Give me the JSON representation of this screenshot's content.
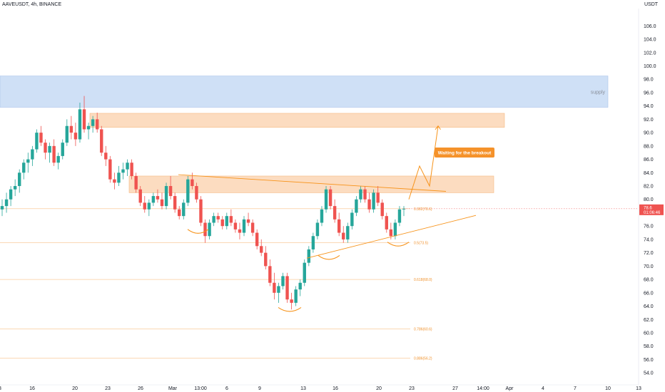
{
  "header": {
    "symbol": "AAVEUSDT, 4h, BINANCE",
    "unit": "USDT"
  },
  "colors": {
    "up": "#26a69a",
    "down": "#ef5350",
    "accent": "#f7931a",
    "supply": "#c7dbf5",
    "demand": "#fbd6b5",
    "price_tag": "#ef5350"
  },
  "chart_data": {
    "type": "candlestick",
    "title": "",
    "xlabel": "",
    "ylabel": "",
    "ylim": [
      52.2,
      108.6
    ],
    "y_ticks": [
      54.0,
      56.0,
      58.0,
      60.0,
      62.0,
      64.0,
      66.0,
      68.0,
      70.0,
      72.0,
      74.0,
      76.0,
      78.0,
      80.0,
      82.0,
      84.0,
      86.0,
      88.0,
      90.0,
      92.0,
      94.0,
      96.0,
      98.0,
      100.0,
      102.0,
      104.0,
      106.0
    ],
    "x_ticks": [
      "3",
      "16",
      "20",
      "23",
      "26",
      "Mar",
      "13:00",
      "6",
      "9",
      "13",
      "16",
      "20",
      "23",
      "27",
      "14:00",
      "Apr",
      "4",
      "7",
      "10",
      "13"
    ],
    "last_price": "78.6",
    "countdown": "01:06:46",
    "candles": [
      [
        78.5,
        80,
        77.5,
        79
      ],
      [
        79,
        81,
        78,
        80
      ],
      [
        80,
        82,
        79,
        81.5
      ],
      [
        81.5,
        83,
        80.5,
        82
      ],
      [
        82,
        84.5,
        81,
        84
      ],
      [
        84,
        86,
        83,
        85.5
      ],
      [
        85.5,
        87,
        84,
        86
      ],
      [
        86,
        88,
        85,
        87.5
      ],
      [
        87.5,
        90.5,
        87,
        90
      ],
      [
        90,
        91,
        88,
        88.5
      ],
      [
        88.5,
        89,
        86,
        87
      ],
      [
        87,
        88.5,
        85.5,
        88
      ],
      [
        88,
        89,
        85,
        85.5
      ],
      [
        85.5,
        87,
        84.5,
        86.5
      ],
      [
        86.5,
        89,
        86,
        88.5
      ],
      [
        88.5,
        92,
        88,
        91
      ],
      [
        91,
        92.5,
        89,
        90
      ],
      [
        90,
        91.5,
        88,
        89
      ],
      [
        89,
        94.5,
        88.5,
        93.5
      ],
      [
        93.5,
        95.5,
        90,
        90.5
      ],
      [
        90.5,
        91.5,
        89,
        91
      ],
      [
        91,
        92.5,
        90,
        92
      ],
      [
        92,
        93,
        90,
        90.5
      ],
      [
        90.5,
        91,
        86.5,
        87
      ],
      [
        87,
        88,
        85,
        86
      ],
      [
        86,
        86.5,
        82.5,
        83
      ],
      [
        83,
        84,
        81.5,
        82.5
      ],
      [
        82.5,
        85,
        82,
        84
      ],
      [
        84,
        85.5,
        83,
        84.5
      ],
      [
        84.5,
        86,
        83.5,
        85.5
      ],
      [
        85.5,
        86,
        83,
        83.5
      ],
      [
        83.5,
        84,
        81,
        81.5
      ],
      [
        81.5,
        82,
        79,
        79.5
      ],
      [
        79.5,
        80.5,
        78,
        78.5
      ],
      [
        78.5,
        80,
        77.5,
        79.5
      ],
      [
        79.5,
        81,
        79,
        80.5
      ],
      [
        80.5,
        81.5,
        79.5,
        80
      ],
      [
        80,
        81,
        78.5,
        79
      ],
      [
        79,
        82.5,
        78.5,
        82
      ],
      [
        82,
        83.5,
        80,
        80.5
      ],
      [
        80.5,
        81,
        78,
        78.5
      ],
      [
        78.5,
        79,
        77,
        77.5
      ],
      [
        77.5,
        80,
        77,
        79.5
      ],
      [
        79.5,
        83.5,
        79,
        83
      ],
      [
        83,
        84,
        81.5,
        82
      ],
      [
        82,
        82.5,
        79.5,
        80
      ],
      [
        80,
        80.5,
        76,
        76.5
      ],
      [
        76.5,
        77,
        73.5,
        74.5
      ],
      [
        74.5,
        77,
        74,
        76.5
      ],
      [
        76.5,
        78,
        76,
        77.5
      ],
      [
        77.5,
        78,
        76.5,
        77
      ],
      [
        77,
        77.5,
        75.5,
        76
      ],
      [
        76,
        78,
        75.5,
        77.5
      ],
      [
        77.5,
        78.5,
        76,
        76.5
      ],
      [
        76.5,
        77,
        75,
        75.5
      ],
      [
        75.5,
        76.5,
        74,
        75
      ],
      [
        75,
        77.5,
        74.5,
        77
      ],
      [
        77,
        78,
        76,
        76.5
      ],
      [
        76.5,
        77,
        74.5,
        75
      ],
      [
        75,
        75.5,
        72.5,
        73
      ],
      [
        73,
        74,
        71.5,
        72
      ],
      [
        72,
        73,
        69.5,
        70
      ],
      [
        70,
        71,
        67,
        67.5
      ],
      [
        67.5,
        69,
        65,
        66
      ],
      [
        66,
        67.5,
        64.5,
        67
      ],
      [
        67,
        69,
        66.5,
        68.5
      ],
      [
        68.5,
        69,
        64.5,
        65
      ],
      [
        65,
        66,
        63.5,
        64.5
      ],
      [
        64.5,
        67,
        64,
        66.5
      ],
      [
        66.5,
        68,
        65.5,
        67.5
      ],
      [
        67.5,
        71,
        67,
        70.5
      ],
      [
        70.5,
        73,
        70,
        72.5
      ],
      [
        72.5,
        75,
        72,
        74.5
      ],
      [
        74.5,
        77,
        74,
        76.5
      ],
      [
        76.5,
        79,
        76,
        78.5
      ],
      [
        78.5,
        82,
        78,
        81.5
      ],
      [
        81.5,
        82,
        78.5,
        79
      ],
      [
        79,
        80,
        76.5,
        77
      ],
      [
        77,
        78,
        74.5,
        75
      ],
      [
        75,
        76,
        73.5,
        74
      ],
      [
        74,
        76.5,
        73.5,
        76
      ],
      [
        76,
        78.5,
        75.5,
        78
      ],
      [
        78,
        80.5,
        77.5,
        80
      ],
      [
        80,
        82,
        79.5,
        81.5
      ],
      [
        81.5,
        82,
        79.5,
        80
      ],
      [
        80,
        81,
        78,
        78.5
      ],
      [
        78.5,
        81.5,
        78,
        81
      ],
      [
        81,
        82,
        79,
        79.5
      ],
      [
        79.5,
        80,
        77,
        77.5
      ],
      [
        77.5,
        78,
        75,
        75.5
      ],
      [
        75.5,
        76.5,
        74,
        74.5
      ],
      [
        74.5,
        77,
        74,
        76.5
      ],
      [
        76.5,
        79,
        76,
        78.5
      ],
      [
        78.5,
        79,
        77.5,
        78.6
      ]
    ],
    "zones": [
      {
        "label": "supply",
        "y_from": 93.8,
        "y_to": 98.5
      },
      {
        "label": "",
        "y_from": 90.8,
        "y_to": 92.9
      },
      {
        "label": "",
        "y_from": 81.0,
        "y_to": 83.5
      }
    ],
    "fib_levels": [
      {
        "label": "0.382(78.6)",
        "value": 78.6
      },
      {
        "label": "0.5(73.5)",
        "value": 73.5
      },
      {
        "label": "0.618(68.0)",
        "value": 68.0
      },
      {
        "label": "0.786(60.6)",
        "value": 60.6
      },
      {
        "label": "0.886(56.2)",
        "value": 56.2
      }
    ],
    "annotations": [
      {
        "type": "callout",
        "text": "Waiting for the breakout"
      }
    ]
  }
}
